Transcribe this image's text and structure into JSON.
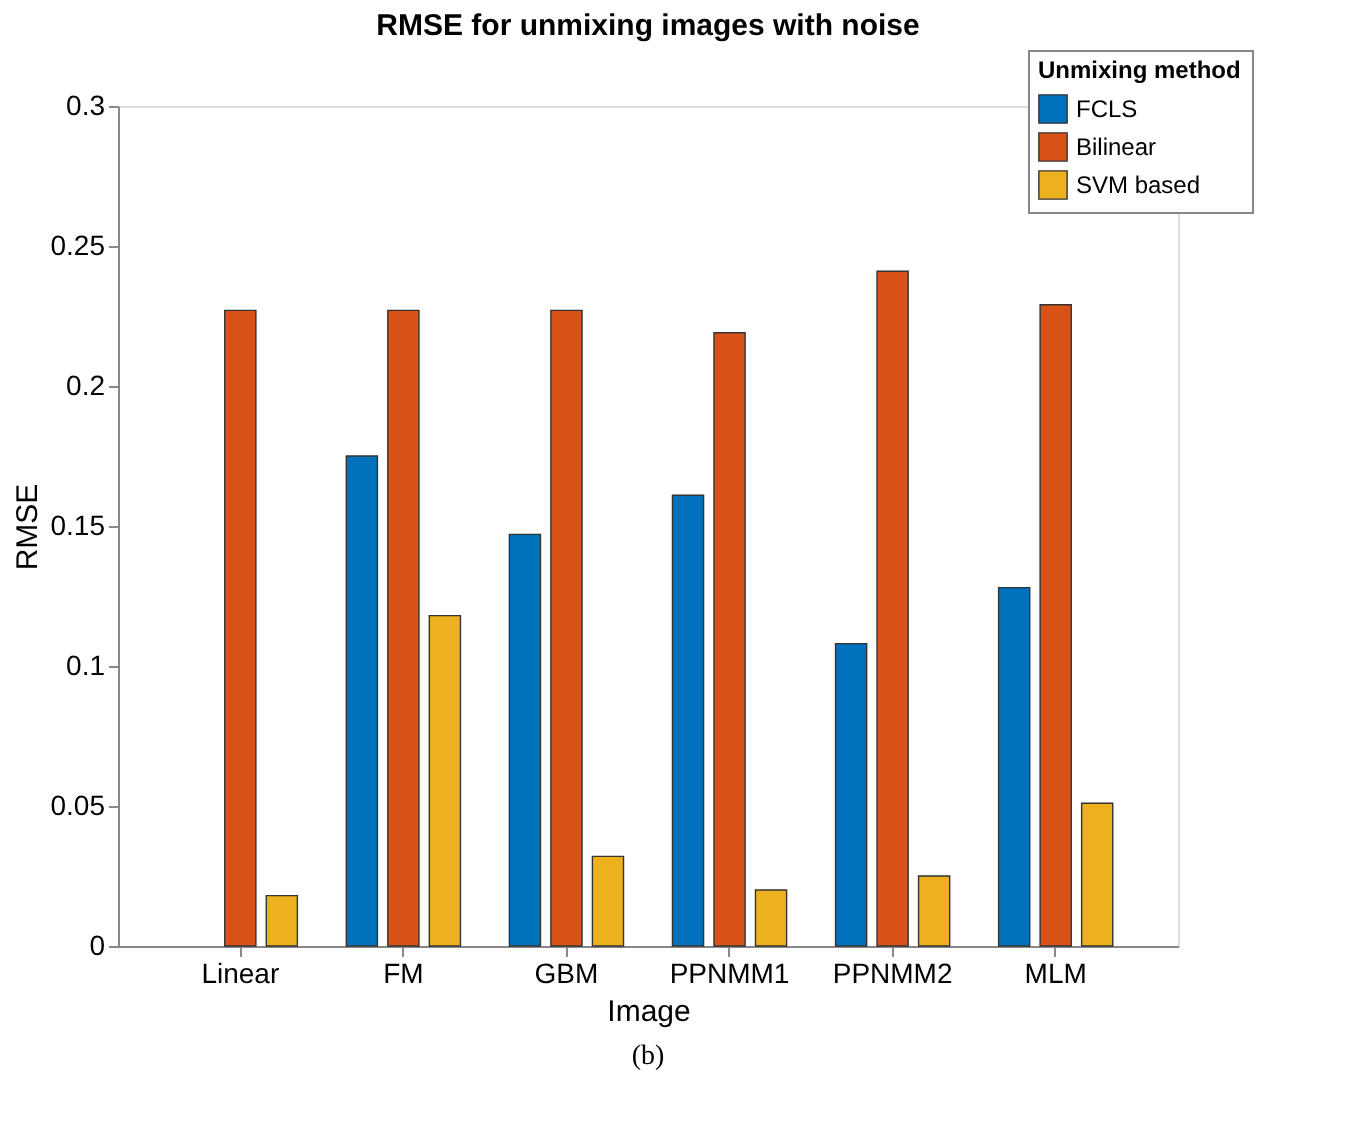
{
  "chart_data": {
    "type": "bar",
    "title": "RMSE for unmixing images with noise",
    "xlabel": "Image",
    "ylabel": "RMSE",
    "legend_title": "Unmixing method",
    "annotations": [
      "(b)"
    ],
    "categories": [
      "Linear",
      "FM",
      "GBM",
      "PPNMM1",
      "PPNMM2",
      "MLM"
    ],
    "series": [
      {
        "name": "FCLS",
        "color": "#0072bd",
        "values": [
          null,
          0.175,
          0.147,
          0.161,
          0.108,
          0.128
        ]
      },
      {
        "name": "Bilinear",
        "color": "#d95319",
        "values": [
          0.227,
          0.227,
          0.227,
          0.219,
          0.241,
          0.229
        ]
      },
      {
        "name": "SVM based",
        "color": "#edb120",
        "values": [
          0.018,
          0.118,
          0.032,
          0.02,
          0.025,
          0.051
        ]
      }
    ],
    "ylim": [
      0,
      0.3
    ],
    "yticks": [
      0,
      0.05,
      0.1,
      0.15,
      0.2,
      0.25,
      0.3
    ],
    "grid": false,
    "legend": "top right"
  }
}
